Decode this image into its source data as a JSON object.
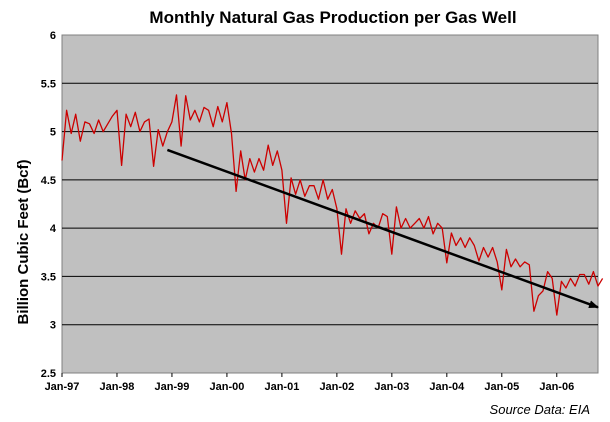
{
  "chart_data": {
    "type": "line",
    "title": "Monthly Natural Gas Production per Gas Well",
    "ylabel": "Billion Cubic Feet (Bcf)",
    "xlabel": "",
    "source_note": "Source Data: EIA",
    "ylim": [
      2.5,
      6
    ],
    "yticks": [
      "2.5",
      "3",
      "3.5",
      "4",
      "4.5",
      "5",
      "5.5",
      "6"
    ],
    "xticks": [
      "Jan-97",
      "Jan-98",
      "Jan-99",
      "Jan-00",
      "Jan-01",
      "Jan-02",
      "Jan-03",
      "Jan-04",
      "Jan-05",
      "Jan-06"
    ],
    "grid": "horizontal",
    "plot_background": "#C0C0C0",
    "series": [
      {
        "color": "#CC0000",
        "x_start": "1997-01",
        "x_step": "month",
        "values": [
          4.7,
          5.22,
          4.98,
          5.18,
          4.9,
          5.1,
          5.08,
          4.98,
          5.12,
          5.0,
          5.08,
          5.16,
          5.22,
          4.65,
          5.18,
          5.05,
          5.2,
          5.0,
          5.1,
          5.13,
          4.64,
          5.02,
          4.85,
          5.0,
          5.1,
          5.38,
          4.85,
          5.37,
          5.12,
          5.22,
          5.1,
          5.25,
          5.22,
          5.05,
          5.26,
          5.1,
          5.3,
          4.98,
          4.38,
          4.8,
          4.5,
          4.72,
          4.58,
          4.72,
          4.6,
          4.86,
          4.65,
          4.8,
          4.6,
          4.05,
          4.52,
          4.35,
          4.5,
          4.33,
          4.44,
          4.44,
          4.3,
          4.5,
          4.3,
          4.4,
          4.2,
          3.73,
          4.2,
          4.05,
          4.18,
          4.1,
          4.15,
          3.94,
          4.05,
          4.0,
          4.15,
          4.12,
          3.73,
          4.22,
          4.0,
          4.1,
          4.0,
          4.05,
          4.1,
          4.0,
          4.12,
          3.94,
          4.05,
          4.0,
          3.64,
          3.95,
          3.82,
          3.9,
          3.8,
          3.9,
          3.82,
          3.66,
          3.8,
          3.7,
          3.8,
          3.65,
          3.36,
          3.78,
          3.6,
          3.68,
          3.6,
          3.65,
          3.62,
          3.14,
          3.3,
          3.35,
          3.55,
          3.48,
          3.1,
          3.45,
          3.38,
          3.48,
          3.4,
          3.52,
          3.52,
          3.42,
          3.55,
          3.4,
          3.48
        ]
      }
    ],
    "trend_arrow": {
      "color": "#000000",
      "start": {
        "x": "1998-12",
        "y": 4.81
      },
      "end": {
        "x": "2006-10",
        "y": 3.18
      }
    }
  }
}
